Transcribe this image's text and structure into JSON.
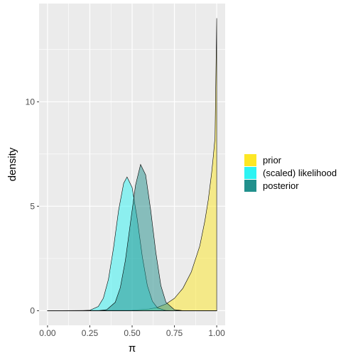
{
  "chart_data": {
    "type": "area",
    "xlabel": "π",
    "ylabel": "density",
    "xlim": [
      -0.05,
      1.05
    ],
    "ylim": [
      -0.7,
      14.7
    ],
    "x_ticks": [
      0,
      0.25,
      0.5,
      0.75,
      1
    ],
    "x_tick_labels": [
      "0.00",
      "0.25",
      "0.50",
      "0.75",
      "1.00"
    ],
    "y_ticks": [
      0,
      5,
      10
    ],
    "y_tick_labels": [
      "0",
      "5",
      "10"
    ],
    "grid": true,
    "legend_position": "right",
    "series": [
      {
        "name": "prior",
        "color": "#FDE725",
        "x": [
          0,
          0.5,
          0.6,
          0.65,
          0.7,
          0.75,
          0.8,
          0.85,
          0.9,
          0.93,
          0.95,
          0.97,
          0.98,
          0.99,
          1.0
        ],
        "values": [
          0,
          0.02,
          0.08,
          0.16,
          0.32,
          0.59,
          1.07,
          1.86,
          3.1,
          4.3,
          5.3,
          6.6,
          7.4,
          8.3,
          14.0
        ]
      },
      {
        "name": "(scaled) likelihood",
        "color": "#2DF3F3",
        "x": [
          0.2,
          0.25,
          0.3,
          0.33,
          0.36,
          0.39,
          0.42,
          0.45,
          0.47,
          0.5,
          0.53,
          0.56,
          0.59,
          0.62,
          0.65,
          0.7,
          0.75
        ],
        "values": [
          0,
          0.02,
          0.2,
          0.6,
          1.5,
          3.0,
          4.8,
          6.1,
          6.4,
          5.9,
          4.4,
          2.6,
          1.2,
          0.45,
          0.13,
          0.01,
          0
        ]
      },
      {
        "name": "posterior",
        "color": "#21908C",
        "x": [
          0.3,
          0.35,
          0.4,
          0.43,
          0.46,
          0.49,
          0.52,
          0.55,
          0.58,
          0.61,
          0.64,
          0.67,
          0.7,
          0.75,
          0.8
        ],
        "values": [
          0,
          0.05,
          0.4,
          1.1,
          2.4,
          4.2,
          6.0,
          7.0,
          6.5,
          4.8,
          2.8,
          1.2,
          0.4,
          0.05,
          0
        ]
      }
    ]
  }
}
